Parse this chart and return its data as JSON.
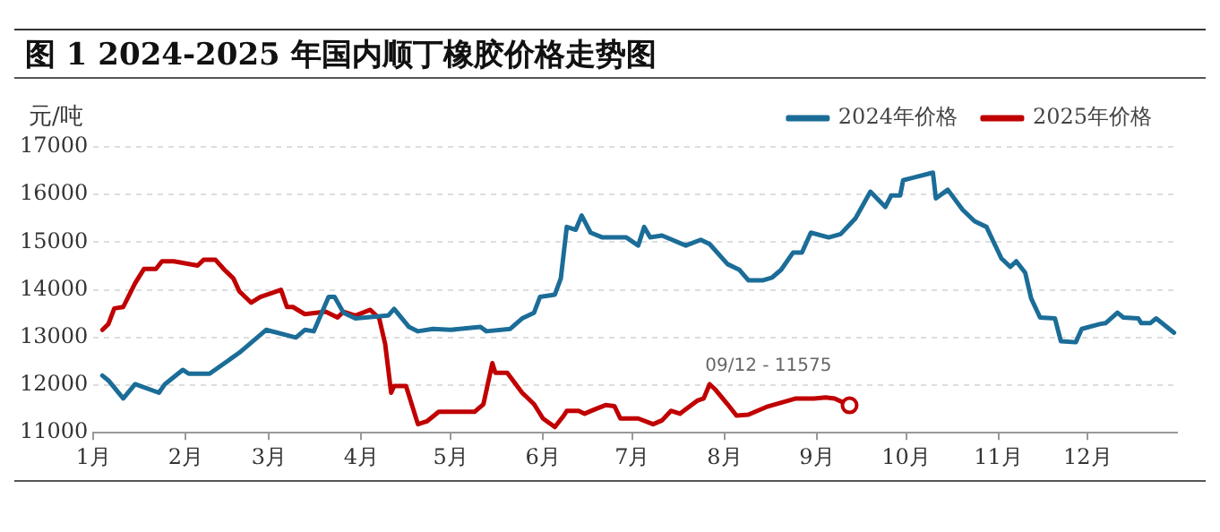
{
  "chart_data": {
    "type": "line",
    "title": "图 1 2024-2025 年国内顺丁橡胶价格走势图",
    "ylabel": "元/吨",
    "xlim": [
      "--01-01",
      "--12-31"
    ],
    "xticks": [
      {
        "value": "--01-01",
        "label": "1月"
      },
      {
        "value": "--02-01",
        "label": "2月"
      },
      {
        "value": "--03-01",
        "label": "3月"
      },
      {
        "value": "--04-01",
        "label": "4月"
      },
      {
        "value": "--05-01",
        "label": "5月"
      },
      {
        "value": "--06-01",
        "label": "6月"
      },
      {
        "value": "--07-01",
        "label": "7月"
      },
      {
        "value": "--08-01",
        "label": "8月"
      },
      {
        "value": "--09-01",
        "label": "9月"
      },
      {
        "value": "--10-01",
        "label": "10月"
      },
      {
        "value": "--11-01",
        "label": "11月"
      },
      {
        "value": "--12-01",
        "label": "12月"
      }
    ],
    "ylim": [
      11000,
      17000
    ],
    "yticks": [
      11000,
      12000,
      13000,
      14000,
      15000,
      16000,
      17000
    ],
    "grid": "y",
    "legend": "top right",
    "marker": "none",
    "line_style": "solid",
    "annotations": [
      {
        "text": "09/12 - 11575",
        "x": "--09-12",
        "y": 11575
      }
    ],
    "series": [
      {
        "name": "2024年价格",
        "color": "#1b6d98",
        "x": [
          "--01-04",
          "--01-06",
          "--01-11",
          "--01-15",
          "--01-23",
          "--01-25",
          "--01-31",
          "--02-02",
          "--02-09",
          "--02-19",
          "--02-28",
          "--03-10",
          "--03-13",
          "--03-16",
          "--03-21",
          "--03-23",
          "--03-26",
          "--03-30",
          "--04-10",
          "--04-12",
          "--04-17",
          "--04-20",
          "--04-25",
          "--05-01",
          "--05-11",
          "--05-13",
          "--05-21",
          "--05-25",
          "--05-29",
          "--05-31",
          "--06-05",
          "--06-07",
          "--06-09",
          "--06-12",
          "--06-14",
          "--06-17",
          "--06-21",
          "--06-29",
          "--07-03",
          "--07-05",
          "--07-07",
          "--07-11",
          "--07-19",
          "--07-24",
          "--07-27",
          "--08-02",
          "--08-06",
          "--08-09",
          "--08-14",
          "--08-17",
          "--08-20",
          "--08-24",
          "--08-27",
          "--08-30",
          "--09-05",
          "--09-09",
          "--09-14",
          "--09-19",
          "--09-24",
          "--09-26",
          "--09-29",
          "--09-30",
          "--10-10",
          "--10-11",
          "--10-15",
          "--10-20",
          "--10-24",
          "--10-28",
          "--11-02",
          "--11-05",
          "--11-07",
          "--11-10",
          "--11-12",
          "--11-15",
          "--11-20",
          "--11-22",
          "--11-27",
          "--11-29",
          "--12-05",
          "--12-07",
          "--12-11",
          "--12-13",
          "--12-18",
          "--12-19",
          "--12-22",
          "--12-24",
          "--12-30"
        ],
        "values": [
          12200,
          12100,
          11720,
          12020,
          11840,
          12020,
          12320,
          12240,
          12240,
          12680,
          13160,
          13000,
          13160,
          13130,
          13850,
          13850,
          13520,
          13400,
          13460,
          13600,
          13220,
          13130,
          13180,
          13160,
          13220,
          13130,
          13180,
          13400,
          13520,
          13850,
          13900,
          14240,
          15320,
          15260,
          15560,
          15200,
          15100,
          15100,
          14930,
          15320,
          15100,
          15140,
          14930,
          15050,
          14960,
          14540,
          14420,
          14200,
          14200,
          14260,
          14420,
          14780,
          14780,
          15200,
          15100,
          15170,
          15500,
          16060,
          15740,
          15980,
          15980,
          16300,
          16460,
          15920,
          16100,
          15680,
          15440,
          15320,
          14660,
          14480,
          14600,
          14360,
          13820,
          13420,
          13400,
          12920,
          12900,
          13180,
          13280,
          13300,
          13520,
          13420,
          13400,
          13300,
          13300,
          13400,
          13100
        ]
      },
      {
        "name": "2025年价格",
        "color": "#c00000",
        "x": [
          "--01-04",
          "--01-06",
          "--01-08",
          "--01-11",
          "--01-15",
          "--01-18",
          "--01-22",
          "--01-24",
          "--01-28",
          "--02-05",
          "--02-07",
          "--02-11",
          "--02-14",
          "--02-17",
          "--02-19",
          "--02-23",
          "--02-26",
          "--03-05",
          "--03-07",
          "--03-09",
          "--03-13",
          "--03-20",
          "--03-24",
          "--03-26",
          "--03-30",
          "--04-04",
          "--04-07",
          "--04-09",
          "--04-11",
          "--04-12",
          "--04-16",
          "--04-20",
          "--04-23",
          "--04-27",
          "--05-09",
          "--05-12",
          "--05-15",
          "--05-16",
          "--05-20",
          "--05-25",
          "--05-29",
          "--06-01",
          "--06-05",
          "--06-08",
          "--06-09",
          "--06-13",
          "--06-15",
          "--06-18",
          "--06-22",
          "--06-25",
          "--06-27",
          "--07-03",
          "--07-08",
          "--07-11",
          "--07-14",
          "--07-17",
          "--07-23",
          "--07-25",
          "--07-27",
          "--07-29",
          "--08-02",
          "--08-05",
          "--08-09",
          "--08-15",
          "--08-25",
          "--08-31",
          "--09-04",
          "--09-07",
          "--09-12"
        ],
        "values": [
          13160,
          13280,
          13610,
          13640,
          14140,
          14440,
          14440,
          14600,
          14600,
          14510,
          14630,
          14630,
          14420,
          14240,
          13970,
          13730,
          13850,
          14000,
          13640,
          13640,
          13490,
          13540,
          13420,
          13540,
          13460,
          13580,
          13400,
          12860,
          11840,
          11980,
          11980,
          11180,
          11240,
          11440,
          11440,
          11600,
          12460,
          12260,
          12260,
          11840,
          11600,
          11300,
          11120,
          11360,
          11460,
          11460,
          11400,
          11480,
          11580,
          11560,
          11300,
          11300,
          11180,
          11260,
          11460,
          11400,
          11680,
          11720,
          12020,
          11900,
          11600,
          11360,
          11380,
          11540,
          11720,
          11720,
          11740,
          11720,
          11575
        ]
      }
    ]
  }
}
